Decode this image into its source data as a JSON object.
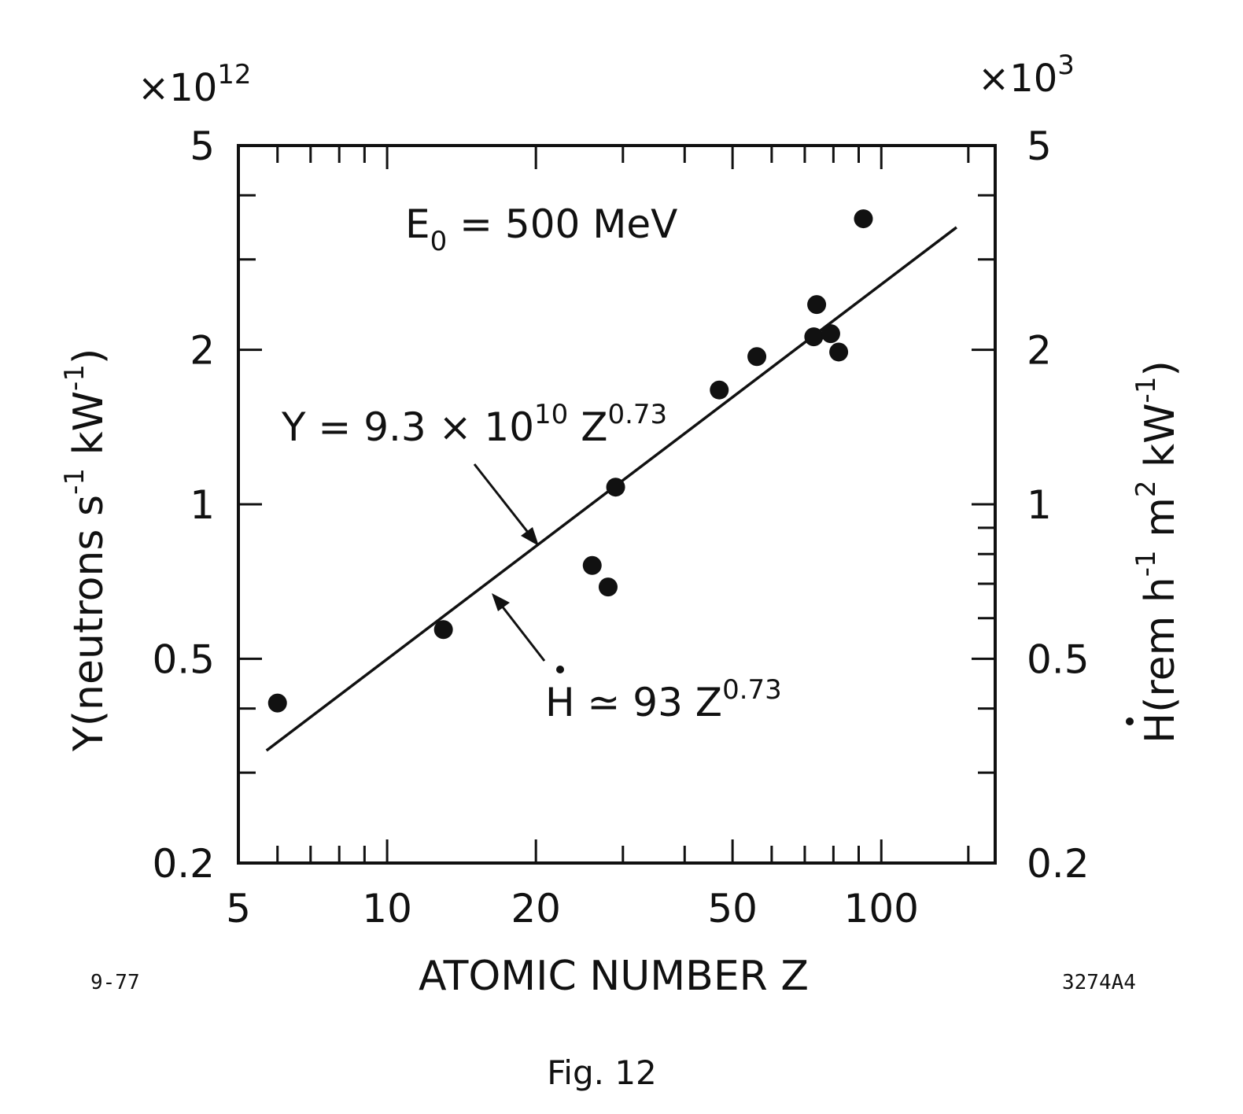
{
  "figure_caption": "Fig. 12",
  "date_code": "9-77",
  "figure_code": "3274A4",
  "chart_data": {
    "type": "scatter",
    "xscale": "log",
    "yscale": "log",
    "xlim": [
      5,
      170
    ],
    "ylim": [
      0.2,
      5
    ],
    "grid": false,
    "xlabel": "ATOMIC NUMBER Z",
    "ylabel_left": {
      "symbol": "Y",
      "units_main": "(neutrons  s",
      "units_sup1": "-1",
      "units_mid": "  kW",
      "units_sup2": "-1",
      "units_end": ")"
    },
    "ylabel_right": {
      "symbol": "H",
      "units_main": "(rem  h",
      "units_sup1": "-1",
      "units_mid": "  m",
      "units_sup2": "2",
      "units_mid2": "  kW",
      "units_sup3": "-1",
      "units_end": ")"
    },
    "left_multiplier": {
      "base": "×10",
      "exp": "12"
    },
    "right_multiplier": {
      "base": "×10",
      "exp": "3"
    },
    "x_ticks": [
      {
        "value": 5,
        "label": "5"
      },
      {
        "value": 10,
        "label": "10"
      },
      {
        "value": 20,
        "label": "20"
      },
      {
        "value": 50,
        "label": "50"
      },
      {
        "value": 100,
        "label": "100"
      }
    ],
    "x_minor_ticks": [
      6,
      7,
      8,
      9,
      30,
      40,
      60,
      70,
      80,
      90,
      150
    ],
    "y_ticks": [
      {
        "value": 0.2,
        "label": "0.2"
      },
      {
        "value": 0.5,
        "label": "0.5"
      },
      {
        "value": 1,
        "label": "1"
      },
      {
        "value": 2,
        "label": "2"
      },
      {
        "value": 5,
        "label": "5"
      }
    ],
    "y_minor_ticks": [
      0.3,
      0.4,
      3,
      4
    ],
    "y_minor_ticks_right_only": [
      0.6,
      0.7,
      0.8,
      0.9
    ],
    "annotations": {
      "energy": {
        "base": "E",
        "sub": "0",
        "rest": " = 500  MeV"
      },
      "fit_y": {
        "text": "Y = 9.3 × 10",
        "exp1": "10",
        "mid": "  Z",
        "exp2": "0.73"
      },
      "fit_h": {
        "text": "H ≃ 93  Z",
        "exp": "0.73"
      }
    },
    "fit_line": {
      "coefficient": 0.093,
      "exponent": 0.73,
      "x_range": [
        5.7,
        142
      ]
    },
    "points": [
      {
        "x": 6,
        "y": 0.41
      },
      {
        "x": 13,
        "y": 0.57
      },
      {
        "x": 26,
        "y": 0.76
      },
      {
        "x": 28,
        "y": 0.69
      },
      {
        "x": 29,
        "y": 1.08
      },
      {
        "x": 47,
        "y": 1.67
      },
      {
        "x": 56,
        "y": 1.94
      },
      {
        "x": 73,
        "y": 2.12
      },
      {
        "x": 74,
        "y": 2.45
      },
      {
        "x": 79,
        "y": 2.15
      },
      {
        "x": 82,
        "y": 1.98
      },
      {
        "x": 92,
        "y": 3.6
      }
    ]
  }
}
